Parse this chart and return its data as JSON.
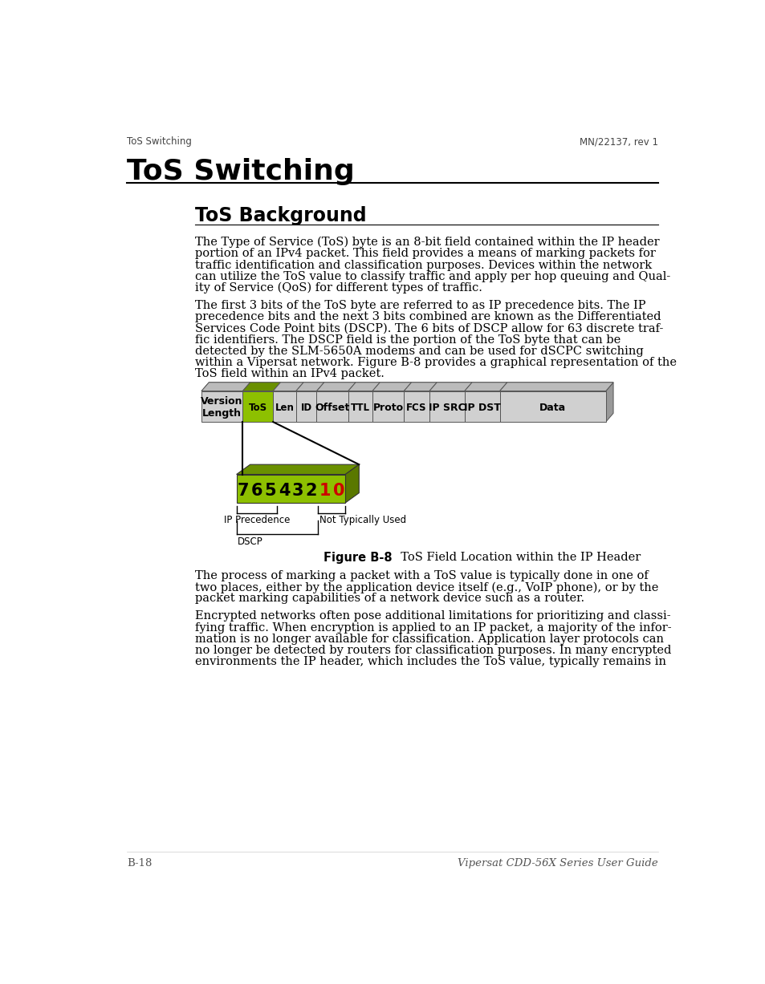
{
  "page_title": "ToS Switching",
  "header_left": "ToS Switching",
  "header_right": "MN/22137, rev 1",
  "section_title": "ToS Background",
  "para1": "The Type of Service (ToS) byte is an 8-bit field contained within the IP header\nportion of an IPv4 packet. This field provides a means of marking packets for\ntraffic identification and classification purposes. Devices within the network\ncan utilize the ToS value to classify traffic and apply per hop queuing and Qual-\nity of Service (QoS) for different types of traffic.",
  "para2": "The first 3 bits of the ToS byte are referred to as IP precedence bits. The IP\nprecedence bits and the next 3 bits combined are known as the Differentiated\nServices Code Point bits (DSCP). The 6 bits of DSCP allow for 63 discrete traf-\nfic identifiers. The DSCP field is the portion of the ToS byte that can be\ndetected by the SLM-5650A modems and can be used for dSCPC switching\nwithin a Vipersat network. Figure B-8 provides a graphical representation of the\nToS field within an IPv4 packet.",
  "para3": "The process of marking a packet with a ToS value is typically done in one of\ntwo places, either by the application device itself (e.g., VoIP phone), or by the\npacket marking capabilities of a network device such as a router.",
  "para4": "Encrypted networks often pose additional limitations for prioritizing and classi-\nfying traffic. When encryption is applied to an IP packet, a majority of the infor-\nmation is no longer available for classification. Application layer protocols can\nno longer be detected by routers for classification purposes. In many encrypted\nenvironments the IP header, which includes the ToS value, typically remains in",
  "figure_caption_bold": "Figure B-8",
  "figure_caption_normal": "  ToS Field Location within the IP Header",
  "footer_left": "B-18",
  "footer_right": "Vipersat CDD-56X Series User Guide",
  "ip_header_fields": [
    "Version\nLength",
    "ToS",
    "Len",
    "ID",
    "Offset",
    "TTL",
    "Proto",
    "FCS",
    "IP SRC",
    "IP DST",
    "Data"
  ],
  "tos_green": "#8dc000",
  "tos_dark_green": "#6a9000",
  "tos_side_green": "#5a7800",
  "header_gray": "#d0d0d0",
  "header_top_gray": "#bbbbbb",
  "header_side_gray": "#999999",
  "bit_labels_black": [
    "7",
    "6",
    "5",
    "4",
    "3",
    "2"
  ],
  "bit_labels_red": [
    "1",
    "0"
  ],
  "bracket_label_left": "IP Precedence",
  "bracket_label_mid": "Not Typically Used",
  "bracket_label_bottom": "DSCP",
  "bg_color": "#ffffff",
  "text_color": "#000000",
  "header_text_color": "#555555"
}
